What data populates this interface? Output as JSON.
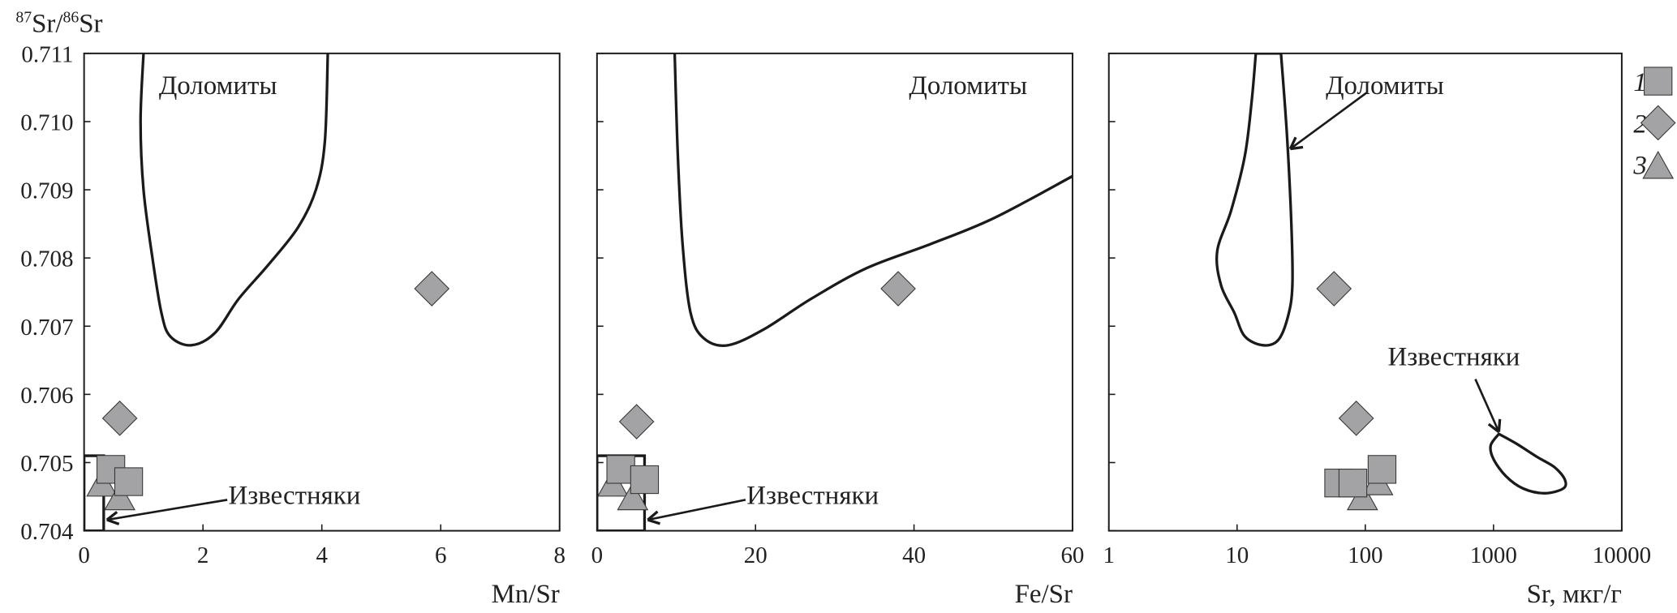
{
  "chart_data": [
    {
      "type": "scatter",
      "ylabel": "87Sr/86Sr",
      "ylabel_parts": {
        "sup1": "87",
        "t1": "Sr/",
        "sup2": "86",
        "t2": "Sr"
      },
      "xlabel": "Mn/Sr",
      "xlim": [
        0,
        8
      ],
      "ylim": [
        0.704,
        0.711
      ],
      "xscale": "linear",
      "xticks": [
        "0",
        "2",
        "4",
        "6",
        "8"
      ],
      "yticks": [
        "0.704",
        "0.705",
        "0.706",
        "0.707",
        "0.708",
        "0.709",
        "0.710",
        "0.711"
      ],
      "series": [
        {
          "name": "1",
          "marker": "square",
          "points": [
            [
              0.45,
              0.7049
            ],
            [
              0.75,
              0.70472
            ]
          ]
        },
        {
          "name": "2",
          "marker": "diamond",
          "points": [
            [
              5.85,
              0.70755
            ],
            [
              0.6,
              0.70565
            ]
          ]
        },
        {
          "name": "3",
          "marker": "triangle",
          "points": [
            [
              0.3,
              0.70468
            ],
            [
              0.6,
              0.70448
            ]
          ]
        }
      ],
      "fields": [
        {
          "label": "Доломиты",
          "shape": "open-curve",
          "points": [
            [
              1.0,
              0.711
            ],
            [
              0.95,
              0.71
            ],
            [
              1.0,
              0.709
            ],
            [
              1.15,
              0.708
            ],
            [
              1.3,
              0.7072
            ],
            [
              1.45,
              0.70685
            ],
            [
              1.8,
              0.70672
            ],
            [
              2.2,
              0.7069
            ],
            [
              2.6,
              0.7074
            ],
            [
              3.1,
              0.7079
            ],
            [
              3.6,
              0.70845
            ],
            [
              3.9,
              0.709
            ],
            [
              4.05,
              0.7097
            ],
            [
              4.1,
              0.711
            ]
          ]
        },
        {
          "label": "Известняки",
          "shape": "box",
          "points": [
            [
              0,
              0.704
            ],
            [
              0.33,
              0.704
            ],
            [
              0.33,
              0.7051
            ],
            [
              0,
              0.7051
            ]
          ]
        }
      ]
    },
    {
      "type": "scatter",
      "xlabel": "Fe/Sr",
      "xlim": [
        0,
        60
      ],
      "ylim": [
        0.704,
        0.711
      ],
      "xscale": "linear",
      "xticks": [
        "0",
        "20",
        "40",
        "60"
      ],
      "series": [
        {
          "name": "1",
          "marker": "square",
          "points": [
            [
              3,
              0.7049
            ],
            [
              6,
              0.70475
            ]
          ]
        },
        {
          "name": "2",
          "marker": "diamond",
          "points": [
            [
              38,
              0.70755
            ],
            [
              5,
              0.7056
            ]
          ]
        },
        {
          "name": "3",
          "marker": "triangle",
          "points": [
            [
              2,
              0.70468
            ],
            [
              4.5,
              0.70448
            ]
          ]
        }
      ],
      "fields": [
        {
          "label": "Доломиты",
          "shape": "open-curve",
          "points": [
            [
              9.8,
              0.711
            ],
            [
              10.2,
              0.7095
            ],
            [
              10.8,
              0.7082
            ],
            [
              11.8,
              0.7072
            ],
            [
              13.5,
              0.70682
            ],
            [
              16.5,
              0.70672
            ],
            [
              21,
              0.70695
            ],
            [
              27,
              0.7074
            ],
            [
              34,
              0.70785
            ],
            [
              42,
              0.7082
            ],
            [
              50,
              0.70858
            ],
            [
              60,
              0.7092
            ]
          ]
        },
        {
          "label": "Известняки",
          "shape": "box",
          "points": [
            [
              0,
              0.704
            ],
            [
              6,
              0.704
            ],
            [
              6,
              0.7051
            ],
            [
              0,
              0.7051
            ]
          ]
        }
      ]
    },
    {
      "type": "scatter",
      "xlabel": "Sr, мкг/г",
      "xlim": [
        1,
        10000
      ],
      "ylim": [
        0.704,
        0.711
      ],
      "xscale": "log",
      "xticks": [
        "1",
        "10",
        "100",
        "1000",
        "10000"
      ],
      "series": [
        {
          "name": "1",
          "marker": "square",
          "points": [
            [
              62,
              0.7047
            ],
            [
              80,
              0.7047
            ],
            [
              135,
              0.7049
            ]
          ]
        },
        {
          "name": "2",
          "marker": "diamond",
          "points": [
            [
              57,
              0.70755
            ],
            [
              85,
              0.70565
            ]
          ]
        },
        {
          "name": "3",
          "marker": "triangle",
          "points": [
            [
              95,
              0.70448
            ],
            [
              125,
              0.7047
            ]
          ]
        }
      ],
      "fields": [
        {
          "label": "Доломиты",
          "shape": "closed-curve",
          "points": [
            [
              14,
              0.711
            ],
            [
              13,
              0.7103
            ],
            [
              11.5,
              0.7095
            ],
            [
              9,
              0.7087
            ],
            [
              7,
              0.7081
            ],
            [
              7.5,
              0.7076
            ],
            [
              9.5,
              0.7072
            ],
            [
              11.5,
              0.70685
            ],
            [
              16,
              0.70672
            ],
            [
              21,
              0.7068
            ],
            [
              25,
              0.70715
            ],
            [
              27,
              0.7076
            ],
            [
              26.5,
              0.7085
            ],
            [
              24.5,
              0.7098
            ],
            [
              22,
              0.711
            ]
          ]
        },
        {
          "label": "Известняки",
          "shape": "closed-curve",
          "points": [
            [
              1100,
              0.70542
            ],
            [
              950,
              0.70525
            ],
            [
              1000,
              0.70505
            ],
            [
              1250,
              0.7048
            ],
            [
              1700,
              0.70462
            ],
            [
              2500,
              0.70455
            ],
            [
              3500,
              0.70462
            ],
            [
              3600,
              0.70475
            ],
            [
              3000,
              0.70493
            ],
            [
              2200,
              0.70508
            ],
            [
              1500,
              0.70528
            ],
            [
              1100,
              0.70542
            ]
          ]
        }
      ]
    }
  ],
  "legend": {
    "placement": "right",
    "items": [
      {
        "label": "1",
        "marker": "square"
      },
      {
        "label": "2",
        "marker": "diamond"
      },
      {
        "label": "3",
        "marker": "triangle"
      }
    ]
  },
  "colors": {
    "marker_fill": "#a3a3a5",
    "line": "#1a1a1a"
  }
}
